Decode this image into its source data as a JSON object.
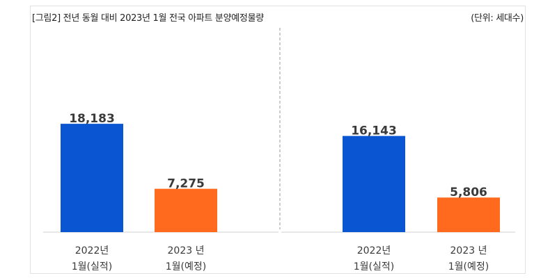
{
  "header": {
    "title": "[그림2] 전년 동월 대비 2023년 1월 전국 아파트 분양예정물량",
    "unit": "(단위: 세대수)"
  },
  "chart_data": [
    {
      "type": "bar",
      "categories": [
        [
          "2022년",
          "1월(실적)"
        ],
        [
          "2023 년",
          "1월(예정)"
        ]
      ],
      "values": [
        18183,
        7275
      ],
      "value_labels": [
        "18,183",
        "7,275"
      ],
      "colors": [
        "#0a55d1",
        "#ff6a1f"
      ],
      "ylim": [
        0,
        20000
      ],
      "grid": false
    },
    {
      "type": "bar",
      "categories": [
        [
          "2022년",
          "1월(실적)"
        ],
        [
          "2023 년",
          "1월(예정)"
        ]
      ],
      "values": [
        16143,
        5806
      ],
      "value_labels": [
        "16,143",
        "5,806"
      ],
      "colors": [
        "#0a55d1",
        "#ff6a1f"
      ],
      "ylim": [
        0,
        20000
      ],
      "grid": false
    }
  ]
}
